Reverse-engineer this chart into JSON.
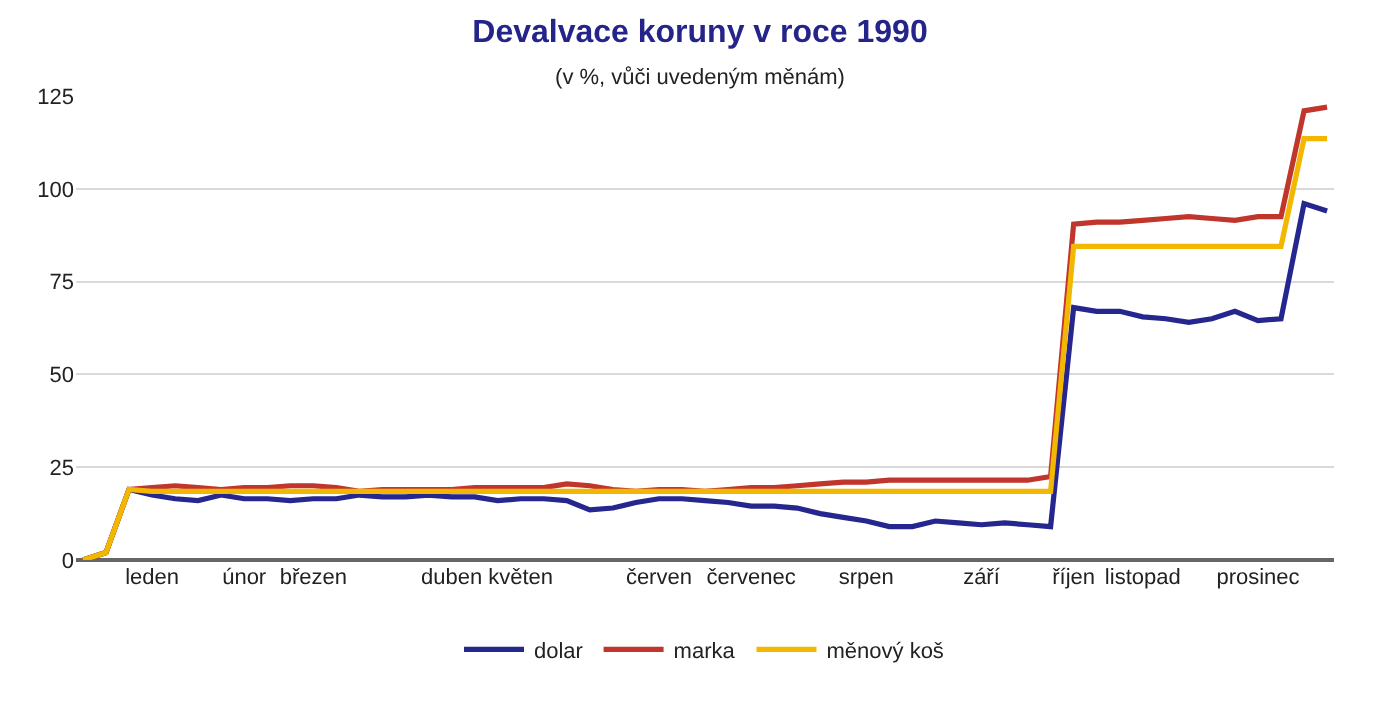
{
  "chart_data": {
    "type": "line",
    "title": "Devalvace koruny v roce 1990",
    "subtitle": "(v %, vůči uvedeným měnám)",
    "categories": [
      null,
      null,
      null,
      "leden",
      null,
      null,
      null,
      "únor",
      null,
      null,
      "březen",
      null,
      null,
      null,
      null,
      null,
      "duben",
      null,
      null,
      "květen",
      null,
      null,
      null,
      null,
      null,
      "červen",
      null,
      null,
      null,
      "červenec",
      null,
      null,
      null,
      null,
      "srpen",
      null,
      null,
      null,
      null,
      "září",
      null,
      null,
      null,
      "říjen",
      null,
      null,
      "listopad",
      null,
      null,
      null,
      null,
      "prosinec",
      null,
      null,
      null
    ],
    "series": [
      {
        "name": "dolar",
        "color": "#26268f",
        "values": [
          0,
          2,
          19,
          17.5,
          16.5,
          16,
          17.5,
          16.5,
          16.5,
          16,
          16.5,
          16.5,
          17.5,
          17,
          17,
          17.5,
          17,
          17,
          16,
          16.5,
          16.5,
          16,
          13.5,
          14,
          15.5,
          16.5,
          16.5,
          16,
          15.5,
          14.5,
          14.5,
          14,
          12.5,
          11.5,
          10.5,
          9,
          9,
          10.5,
          10,
          9.5,
          10,
          9.5,
          9,
          68,
          67,
          67,
          65.5,
          65,
          64,
          65,
          67,
          64.5,
          65,
          96,
          94
        ]
      },
      {
        "name": "marka",
        "color": "#c0362c",
        "values": [
          0,
          2,
          19,
          19.5,
          20,
          19.5,
          19,
          19.5,
          19.5,
          20,
          20,
          19.5,
          18.5,
          19,
          19,
          19,
          19,
          19.5,
          19.5,
          19.5,
          19.5,
          20.5,
          20,
          19,
          18.5,
          19,
          19,
          18.5,
          19,
          19.5,
          19.5,
          20,
          20.5,
          21,
          21,
          21.5,
          21.5,
          21.5,
          21.5,
          21.5,
          21.5,
          21.5,
          22.5,
          90.5,
          91,
          91,
          91.5,
          92,
          92.5,
          92,
          91.5,
          92.5,
          92.5,
          121,
          122
        ]
      },
      {
        "name": "měnový koš",
        "color": "#f2b700",
        "values": [
          0,
          2,
          19,
          18.5,
          18.5,
          18.5,
          18.5,
          18.5,
          18.5,
          18.5,
          18.5,
          18.5,
          18.5,
          18.5,
          18.5,
          18.5,
          18.5,
          18.5,
          18.5,
          18.5,
          18.5,
          18.5,
          18.5,
          18.5,
          18.5,
          18.5,
          18.5,
          18.5,
          18.5,
          18.5,
          18.5,
          18.5,
          18.5,
          18.5,
          18.5,
          18.5,
          18.5,
          18.5,
          18.5,
          18.5,
          18.5,
          18.5,
          18.5,
          84.5,
          84.5,
          84.5,
          84.5,
          84.5,
          84.5,
          84.5,
          84.5,
          84.5,
          84.5,
          113.5,
          113.5
        ]
      }
    ],
    "ylim": [
      0,
      125
    ],
    "yticks": [
      0,
      25,
      50,
      75,
      100,
      125
    ],
    "grid": "y",
    "legend": "bottom",
    "marker": "none",
    "line_style": "solid"
  }
}
